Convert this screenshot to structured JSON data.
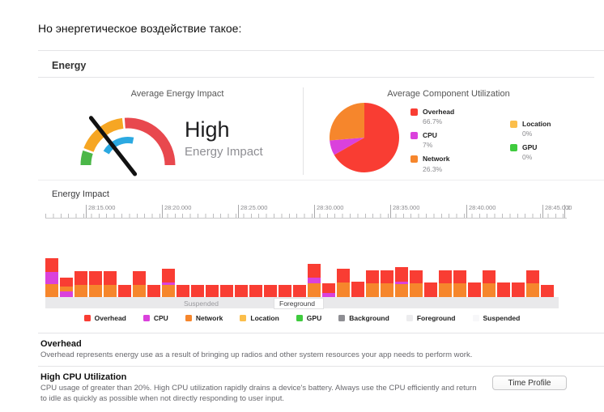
{
  "page": {
    "title": "Но энергетическое воздействие такое:"
  },
  "energy": {
    "section_title": "Energy"
  },
  "colors": {
    "overhead": "#F93D33",
    "cpu": "#DA41DC",
    "network": "#F6862C",
    "location": "#FBBE4B",
    "gpu": "#3FCB3E",
    "background": "#8E8E93",
    "foreground": "#ECECEE",
    "suspended": "#F7F7F9",
    "gauge_green": "#4BB748",
    "gauge_orange": "#F6A623",
    "gauge_red": "#E8484E",
    "gauge_blue": "#2BA9E1",
    "high_text": "#F5A623",
    "band_bg": "#E9E9EB"
  },
  "gauge_panel": {
    "title": "Average Energy Impact",
    "value": "High",
    "value_caption": "Energy Impact"
  },
  "utilization_panel": {
    "title": "Average Component Utilization",
    "legend_col1": [
      {
        "label": "Overhead",
        "value": "66.7%",
        "color": "#F93D33"
      },
      {
        "label": "CPU",
        "value": "7%",
        "color": "#DA41DC"
      },
      {
        "label": "Network",
        "value": "26.3%",
        "color": "#F6862C"
      }
    ],
    "legend_col2": [
      {
        "label": "Location",
        "value": "0%",
        "color": "#FBBE4B"
      },
      {
        "label": "GPU",
        "value": "0%",
        "color": "#3FCB3E"
      }
    ]
  },
  "timeline": {
    "label": "Energy Impact",
    "ticks": [
      "28:15.000",
      "28:20.000",
      "28:25.000",
      "28:30.000",
      "28:35.000",
      "28:40.000",
      "28:45.000"
    ],
    "clipped_tick": "2",
    "state_labels": {
      "suspended": "Suspended",
      "foreground": "Foreground"
    }
  },
  "chart_legend": [
    {
      "label": "Overhead",
      "color": "#F93D33"
    },
    {
      "label": "CPU",
      "color": "#DA41DC"
    },
    {
      "label": "Network",
      "color": "#F6862C"
    },
    {
      "label": "Location",
      "color": "#FBBE4B"
    },
    {
      "label": "GPU",
      "color": "#3FCB3E"
    },
    {
      "label": "Background",
      "color": "#8E8E93"
    },
    {
      "label": "Foreground",
      "color": "#ECECEE"
    },
    {
      "label": "Suspended",
      "color": "#F7F7F9"
    }
  ],
  "overhead_info": {
    "title": "Overhead",
    "description": "Overhead represents energy use as a result of bringing up radios and other system resources your app needs to perform work."
  },
  "cpu_info": {
    "title": "High CPU Utilization",
    "description": "CPU usage of greater than 20%. High CPU utilization rapidly drains a device's battery.  Always use the CPU efficiently and return to idle as quickly as possible when not directly responding to user input.",
    "button_label": "Time Profile"
  },
  "chart_data": [
    {
      "type": "gauge",
      "title": "Average Energy Impact",
      "reading": "High",
      "scale_segments": [
        {
          "name": "low",
          "color_key": "gauge_green",
          "from_deg": 180,
          "to_deg": 162
        },
        {
          "name": "medium",
          "color_key": "gauge_orange",
          "from_deg": 159,
          "to_deg": 97
        },
        {
          "name": "high",
          "color_key": "gauge_red",
          "from_deg": 94,
          "to_deg": 0
        }
      ],
      "inner_arc": {
        "color_key": "gauge_blue",
        "from_deg": 150,
        "to_deg": 78
      },
      "needle_angle_deg": 128
    },
    {
      "type": "pie",
      "title": "Average Component Utilization",
      "labels": [
        "Overhead",
        "CPU",
        "Network",
        "Location",
        "GPU"
      ],
      "values": [
        66.7,
        7,
        26.3,
        0,
        0
      ],
      "colors": [
        "#F93D33",
        "#DA41DC",
        "#F6862C",
        "#FBBE4B",
        "#3FCB3E"
      ],
      "start_angle": "12 o'clock, clockwise",
      "legend_position": "right"
    },
    {
      "type": "bar",
      "stacked": true,
      "title": "Energy Impact",
      "x_tick_labels": [
        "28:15.000",
        "28:20.000",
        "28:25.000",
        "28:30.000",
        "28:35.000",
        "28:40.000",
        "28:45.000"
      ],
      "segment_color_keys": {
        "overhead": "overhead",
        "cpu": "cpu",
        "network": "network"
      },
      "app_states": [
        "Suspended",
        "Foreground"
      ],
      "bars": [
        [
          [
            "network",
            16
          ],
          [
            "cpu",
            15
          ],
          [
            "overhead",
            17
          ]
        ],
        [
          [
            "cpu",
            7
          ],
          [
            "network",
            6
          ],
          [
            "overhead",
            11
          ]
        ],
        [
          [
            "network",
            15
          ],
          [
            "overhead",
            17
          ]
        ],
        [
          [
            "network",
            15
          ],
          [
            "overhead",
            17
          ]
        ],
        [
          [
            "network",
            15
          ],
          [
            "overhead",
            17
          ]
        ],
        [
          [
            "overhead",
            15
          ]
        ],
        [
          [
            "network",
            15
          ],
          [
            "overhead",
            17
          ]
        ],
        [
          [
            "overhead",
            15
          ]
        ],
        [
          [
            "network",
            15
          ],
          [
            "cpu",
            3
          ],
          [
            "overhead",
            17
          ]
        ],
        [
          [
            "overhead",
            15
          ]
        ],
        [
          [
            "overhead",
            15
          ]
        ],
        [
          [
            "overhead",
            15
          ]
        ],
        [
          [
            "overhead",
            15
          ]
        ],
        [
          [
            "overhead",
            15
          ]
        ],
        [
          [
            "overhead",
            15
          ]
        ],
        [
          [
            "overhead",
            15
          ]
        ],
        [
          [
            "overhead",
            15
          ]
        ],
        [
          [
            "overhead",
            15
          ]
        ],
        [
          [
            "network",
            17
          ],
          [
            "cpu",
            7
          ],
          [
            "overhead",
            17
          ]
        ],
        [
          [
            "cpu",
            5
          ],
          [
            "overhead",
            12
          ]
        ],
        [
          [
            "network",
            18
          ],
          [
            "overhead",
            17
          ]
        ],
        [
          [
            "overhead",
            19
          ]
        ],
        [
          [
            "network",
            17
          ],
          [
            "overhead",
            16
          ]
        ],
        [
          [
            "network",
            17
          ],
          [
            "overhead",
            16
          ]
        ],
        [
          [
            "network",
            16
          ],
          [
            "cpu",
            3
          ],
          [
            "overhead",
            18
          ]
        ],
        [
          [
            "network",
            17
          ],
          [
            "overhead",
            16
          ]
        ],
        [
          [
            "overhead",
            18
          ]
        ],
        [
          [
            "network",
            17
          ],
          [
            "overhead",
            16
          ]
        ],
        [
          [
            "network",
            17
          ],
          [
            "overhead",
            16
          ]
        ],
        [
          [
            "overhead",
            18
          ]
        ],
        [
          [
            "network",
            17
          ],
          [
            "overhead",
            16
          ]
        ],
        [
          [
            "overhead",
            18
          ]
        ],
        [
          [
            "overhead",
            18
          ]
        ],
        [
          [
            "network",
            17
          ],
          [
            "overhead",
            16
          ]
        ],
        [
          [
            "overhead",
            15
          ]
        ]
      ]
    }
  ]
}
